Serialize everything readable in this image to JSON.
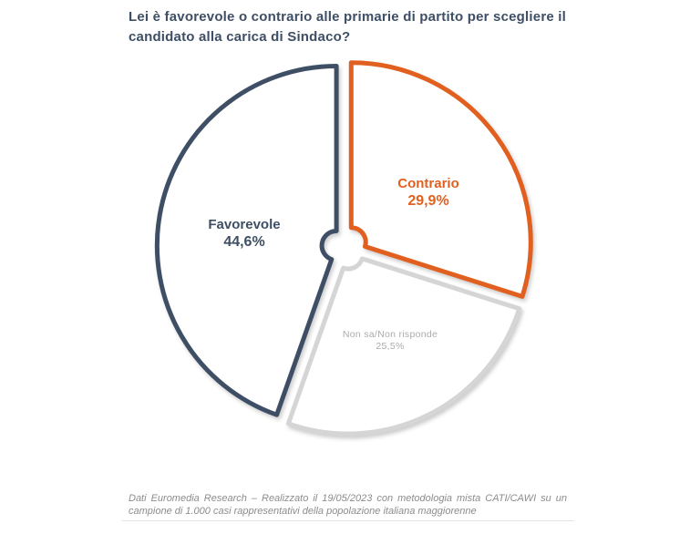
{
  "chart_data": {
    "type": "pie",
    "title": "Lei è favorevole o contrario alle primarie di partito per scegliere il candidato alla carica di Sindaco?",
    "style": "exploded-outline-donut",
    "start_angle": "top",
    "direction": "clockwise",
    "slices": [
      {
        "label": "Contrario",
        "value_pct": 29.9,
        "display_value": "29,9%",
        "color": "#E2601F",
        "label_color": "#E2601F"
      },
      {
        "label": "Non sa/Non risponde",
        "value_pct": 25.5,
        "display_value": "25,5%",
        "color": "#D5D5D5",
        "label_color": "#ABABAB"
      },
      {
        "label": "Favorevole",
        "value_pct": 44.6,
        "display_value": "44,6%",
        "color": "#3E4F65",
        "label_color": "#3E4F65"
      }
    ]
  },
  "footer": {
    "source_note": "Dati Euromedia Research – Realizzato il 19/05/2023 con metodologia mista CATI/CAWI su un campione di 1.000 casi rappresentativi della popolazione italiana maggiorenne"
  }
}
